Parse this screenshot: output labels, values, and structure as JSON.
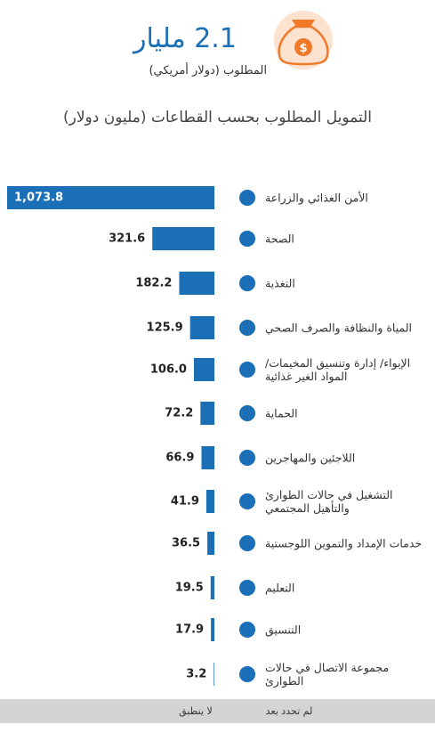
{
  "chart_data": {
    "type": "bar",
    "headline": "2.1 مليار",
    "subheadline": "المطلوب (دولار أمريكي)",
    "title": "التمويل المطلوب بحسب القطاعات (مليون دولار)",
    "categories": [
      "الأمن الغذائي والزراعة",
      "الصحة",
      "التغذية",
      "المياة والنظافة والصرف الصحي",
      "الإيواء/ إدارة وتنسيق المخيمات/ المواد الغير غذائية",
      "الحماية",
      "اللاجئين والمهاجرين",
      "التشغيل في حالات الطوارئ والتأهيل المجتمعي",
      "خدمات الإمداد والتموين اللوجستية",
      "التعليم",
      "التنسيق",
      "مجموعة الاتصال في حالات الطوارئ"
    ],
    "values": [
      1073.8,
      321.6,
      182.2,
      125.9,
      106.0,
      72.2,
      66.9,
      41.9,
      36.5,
      19.5,
      17.9,
      3.2
    ],
    "value_labels": [
      "1,073.8",
      "321.6",
      "182.2",
      "125.9",
      "106.0",
      "72.2",
      "66.9",
      "41.9",
      "36.5",
      "19.5",
      "17.9",
      "3.2"
    ],
    "color": "#1a6fb7",
    "legend": [
      "لم تحدد بعد",
      "لا ينطبق"
    ]
  }
}
